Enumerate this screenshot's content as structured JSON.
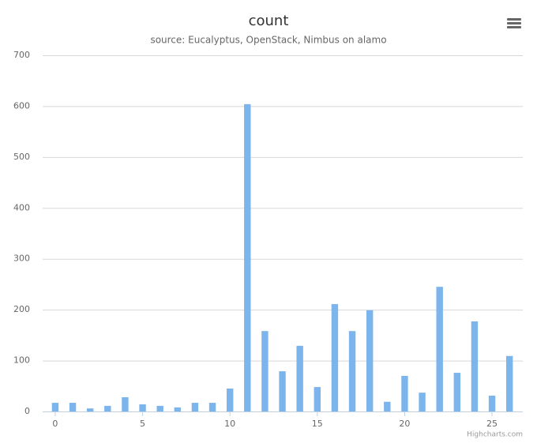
{
  "chart_data": {
    "type": "bar",
    "title": "count",
    "subtitle": "source: Eucalyptus, OpenStack, Nimbus on alamo",
    "x": [
      0,
      1,
      2,
      3,
      4,
      5,
      6,
      7,
      8,
      9,
      10,
      11,
      12,
      13,
      14,
      15,
      16,
      17,
      18,
      19,
      20,
      21,
      22,
      23,
      24,
      25,
      26
    ],
    "values": [
      17,
      17,
      6,
      11,
      28,
      14,
      11,
      8,
      17,
      17,
      45,
      604,
      158,
      79,
      129,
      48,
      211,
      158,
      199,
      19,
      70,
      37,
      245,
      76,
      177,
      31,
      109
    ],
    "color": "#7cb5ec",
    "xlim": [
      -0.72,
      26.76
    ],
    "xticks": [
      0,
      5,
      10,
      15,
      20,
      25
    ],
    "ylim": [
      0,
      700
    ],
    "yticks": [
      0,
      100,
      200,
      300,
      400,
      500,
      600,
      700
    ],
    "grid": true,
    "credits": "Highcharts.com"
  }
}
